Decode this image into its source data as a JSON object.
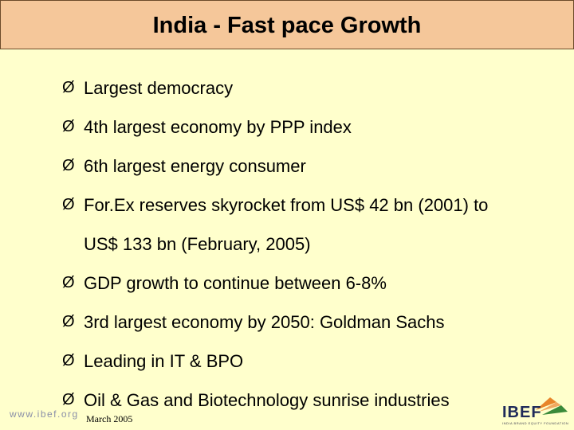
{
  "title": "India - Fast pace Growth",
  "bullets": [
    "Largest democracy",
    "4th largest economy by PPP index",
    "6th largest energy consumer",
    "For.Ex reserves skyrocket from US$ 42 bn (2001) to",
    "US$ 133 bn (February, 2005)",
    "GDP growth to continue between 6-8%",
    "3rd largest economy by 2050: Goldman Sachs",
    "Leading in IT & BPO",
    "Oil & Gas and Biotechnology sunrise industries"
  ],
  "bullet_marker": "Ø",
  "footer": {
    "website": "www.ibef.org",
    "date": "March 2005",
    "logo_text": "IBEF",
    "logo_icon": "bird-flag-icon",
    "logo_sub": "INDIA BRAND EQUITY FOUNDATION"
  },
  "colors": {
    "background": "#ffffcc",
    "title_bar": "#f5c79a",
    "logo_orange": "#e8852a",
    "logo_green": "#3a8a3a",
    "logo_navy": "#1f2a5a"
  }
}
